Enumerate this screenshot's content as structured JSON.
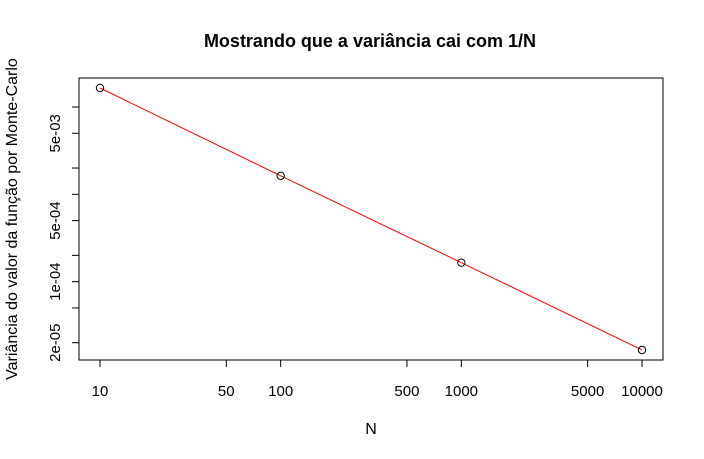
{
  "chart_data": {
    "type": "scatter",
    "title": "Mostrando que a variância cai com 1/N",
    "xlabel": "N",
    "ylabel": "Variância do valor da função por Monte-Carlo",
    "x_scale": "log",
    "y_scale": "log",
    "xlim": [
      10,
      10000
    ],
    "ylim": [
      1.7e-05,
      0.0175
    ],
    "grid": false,
    "legend": "none",
    "x_ticks": [
      10,
      50,
      100,
      500,
      1000,
      5000,
      10000
    ],
    "x_tick_labels": [
      "10",
      "50",
      "100",
      "500",
      "1000",
      "5000",
      "10000"
    ],
    "y_ticks": [
      2e-05,
      5e-05,
      0.0001,
      0.0002,
      0.0005,
      0.001,
      0.002,
      0.005,
      0.01
    ],
    "y_tick_labels": [
      "2e-05",
      "",
      "1e-04",
      "",
      "5e-04",
      "",
      "",
      "5e-03",
      ""
    ],
    "series": [
      {
        "x": [
          10,
          100,
          1000,
          10000
        ],
        "y": [
          0.0165,
          0.00163,
          0.000165,
          1.65e-05
        ],
        "marker": "open-circle",
        "marker_color": "#000000",
        "line": true,
        "line_color": "#ff0000"
      }
    ]
  }
}
